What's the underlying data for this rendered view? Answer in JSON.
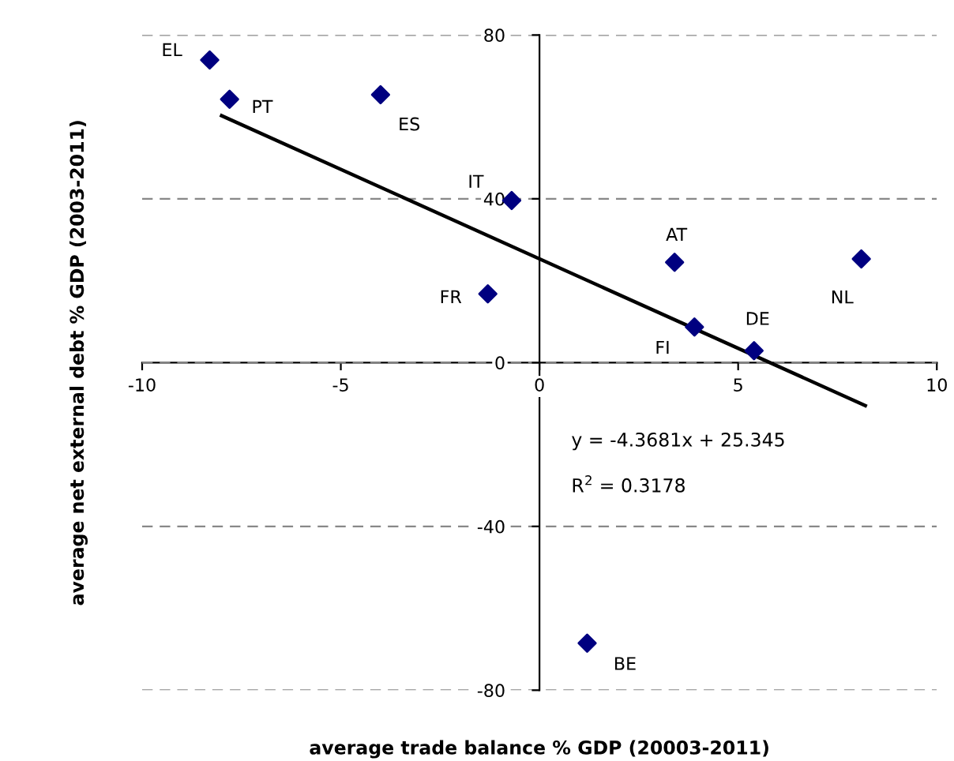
{
  "chart_data": {
    "type": "scatter",
    "xlabel": "average trade balance % GDP (20003-2011)",
    "ylabel": "average net external debt % GDP (2003-2011)",
    "series": [
      {
        "color": "#000080",
        "marker": "diamond",
        "x": [
          -8.3,
          -7.8,
          -4.0,
          -0.7,
          -1.3,
          3.4,
          3.9,
          5.4,
          8.1,
          1.2
        ],
        "values": [
          73.9,
          64.3,
          65.4,
          39.6,
          16.8,
          24.5,
          8.7,
          2.9,
          25.3,
          -68.5
        ]
      },
      {
        "type": "line",
        "color": "#000000",
        "x": [
          -8.0,
          8.2
        ],
        "values": [
          60.3,
          -10.5
        ]
      }
    ],
    "annotations": [
      {
        "text": "EL",
        "x": -8.3,
        "y": 73.9
      },
      {
        "text": "PT",
        "x": -7.8,
        "y": 64.3
      },
      {
        "text": "ES",
        "x": -4.0,
        "y": 65.4
      },
      {
        "text": "IT",
        "x": -0.7,
        "y": 39.6
      },
      {
        "text": "FR",
        "x": -1.3,
        "y": 16.8
      },
      {
        "text": "AT",
        "x": 3.4,
        "y": 24.5
      },
      {
        "text": "FI",
        "x": 3.9,
        "y": 8.7
      },
      {
        "text": "DE",
        "x": 5.4,
        "y": 2.9
      },
      {
        "text": "NL",
        "x": 8.1,
        "y": 25.3
      },
      {
        "text": "BE",
        "x": 1.2,
        "y": -68.5
      },
      "y = -4.3681x + 25.345",
      "R$^{2}$ = 0.3178"
    ],
    "xlim": [
      -10,
      10
    ],
    "ylim": [
      -80,
      80
    ],
    "xticks": [
      -10,
      -5,
      0,
      5,
      10
    ],
    "yticks": [
      -80,
      -40,
      0,
      40,
      80
    ],
    "grid": "y",
    "legend": false
  }
}
